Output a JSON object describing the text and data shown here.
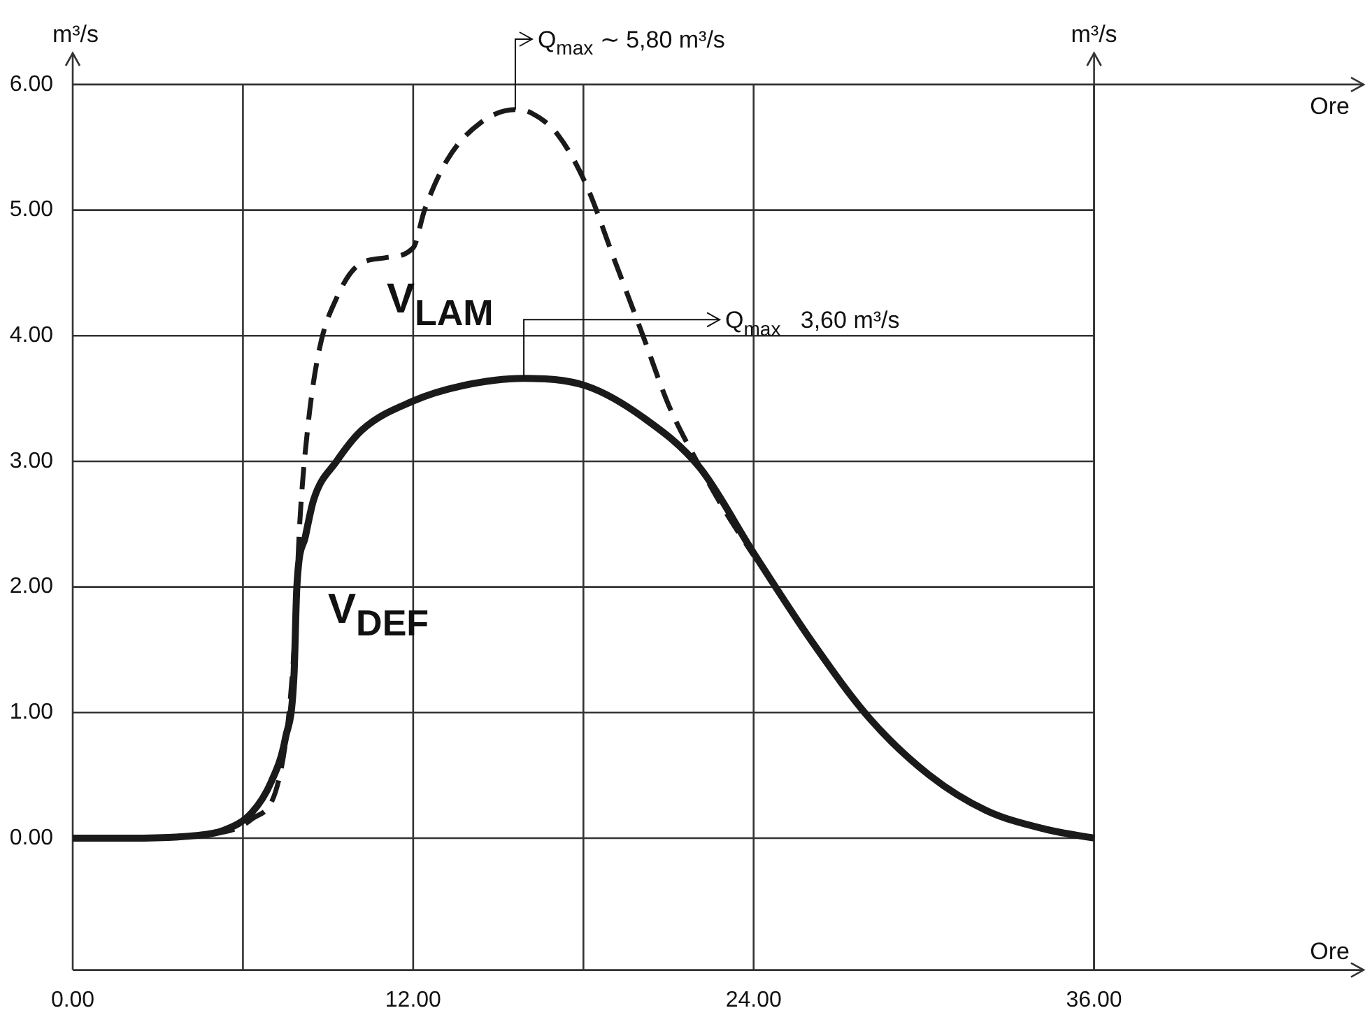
{
  "chart_data": {
    "type": "line",
    "xlabel": "Ore",
    "x2label": "Ore",
    "ylabel": "m³/s",
    "y2label": "m³/s",
    "xlim": [
      0,
      45.5
    ],
    "xticks": [
      {
        "value": 0,
        "label": "0.00"
      },
      {
        "value": 6,
        "label": null
      },
      {
        "value": 12,
        "label": "12.00"
      },
      {
        "value": 18,
        "label": null
      },
      {
        "value": 24,
        "label": "24.00"
      },
      {
        "value": 36,
        "label": "36.00"
      }
    ],
    "ylim": [
      -1.05,
      6.25
    ],
    "yticks": [
      {
        "value": 0,
        "label": "0.00"
      },
      {
        "value": 1,
        "label": "1.00"
      },
      {
        "value": 2,
        "label": "2.00"
      },
      {
        "value": 3,
        "label": "3.00"
      },
      {
        "value": 4,
        "label": "4.00"
      },
      {
        "value": 5,
        "label": "5.00"
      },
      {
        "value": 6,
        "label": "6.00"
      }
    ],
    "grid": true,
    "legend": false,
    "marker": "none",
    "series": [
      {
        "name": "V$_{LAM}$",
        "color": "#1a1a1a",
        "line_style": "dashed",
        "x": [
          0,
          2,
          4.8,
          6.3,
          7.3,
          7.8,
          8,
          8.3,
          8.7,
          9.3,
          10,
          11,
          12,
          12.4,
          13.2,
          14.4,
          15.6,
          16.1,
          17.1,
          18.1,
          19.1,
          20.1,
          21,
          22,
          23,
          24
        ],
        "values": [
          0,
          0,
          0.03,
          0.15,
          0.5,
          1.5,
          2.5,
          3.3,
          3.9,
          4.3,
          4.55,
          4.62,
          4.7,
          5.0,
          5.4,
          5.7,
          5.8,
          5.78,
          5.6,
          5.2,
          4.6,
          4.0,
          3.45,
          3.0,
          2.6,
          2.25
        ]
      },
      {
        "name": "V$_{DEF}$",
        "color": "#1a1a1a",
        "line_style": "solid",
        "x": [
          0,
          2,
          4.3,
          5.3,
          6.3,
          7,
          7.5,
          7.8,
          7.9,
          8.2,
          8.5,
          9.3,
          10.2,
          12,
          13.7,
          15.9,
          18.1,
          20.1,
          22.1,
          24,
          26.1,
          28.1,
          30.2,
          32.2,
          34.3,
          36
        ],
        "values": [
          0,
          0,
          0.02,
          0.06,
          0.2,
          0.45,
          0.8,
          1.3,
          2.0,
          2.4,
          2.7,
          3.0,
          3.25,
          3.48,
          3.6,
          3.66,
          3.6,
          3.35,
          2.95,
          2.27,
          1.55,
          0.95,
          0.5,
          0.22,
          0.07,
          0
        ]
      }
    ],
    "annotations": [
      {
        "text": "Q$_{max}$ ∼ 5,80 m³/s",
        "x": 15.6,
        "y": 5.8
      },
      {
        "text": "Q$_{max}$   3,60 m³/s",
        "x": 15.9,
        "y": 3.66
      }
    ]
  }
}
